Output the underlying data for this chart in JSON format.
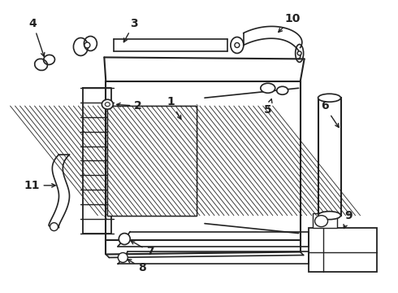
{
  "background_color": "#ffffff",
  "line_color": "#222222",
  "fig_width": 4.9,
  "fig_height": 3.6,
  "dpi": 100
}
